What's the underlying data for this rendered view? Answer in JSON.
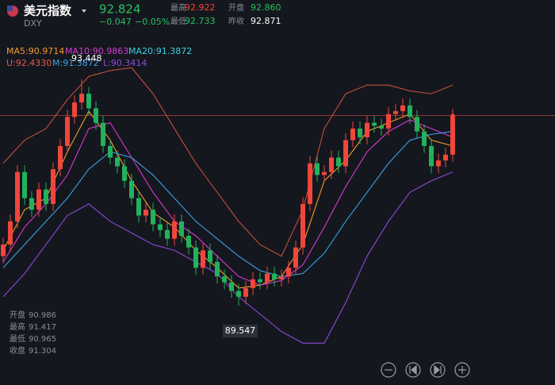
{
  "header": {
    "title": "美元指数",
    "code": "DXY",
    "price": 92.824,
    "change": "−0.047",
    "change_pct": "−0.05%",
    "stats": [
      {
        "label": "最高",
        "value": "92.922"
      },
      {
        "label": "开盘",
        "value": "92.860"
      },
      {
        "label": "最低",
        "value": "92.733"
      },
      {
        "label": "昨收",
        "value": "92.871"
      }
    ]
  },
  "chart_data": {
    "type": "candlestick",
    "up_color": "#f0463c",
    "down_color": "#22b25c",
    "open": [
      90.4,
      90.6,
      91.0,
      91.85,
      91.4,
      91.2,
      91.55,
      91.3,
      91.9,
      92.3,
      92.8,
      93.05,
      93.2,
      92.95,
      92.7,
      92.3,
      92.1,
      91.95,
      91.7,
      91.4,
      91.1,
      91.2,
      90.95,
      90.85,
      90.7,
      91.0,
      90.75,
      90.55,
      90.2,
      90.5,
      90.3,
      90.05,
      89.95,
      89.8,
      89.7,
      89.85,
      90.0,
      89.95,
      90.1,
      90.0,
      90.05,
      90.2,
      90.55,
      91.3,
      92.0,
      91.8,
      91.85,
      92.1,
      91.95,
      92.4,
      92.6,
      92.45,
      92.7,
      92.65,
      92.6,
      92.85,
      92.9,
      93.0,
      92.8,
      92.55,
      92.3,
      91.95,
      92.05,
      92.15
    ],
    "high": [
      90.72,
      91.12,
      91.97,
      91.97,
      91.52,
      91.67,
      91.67,
      92.02,
      92.42,
      92.92,
      93.17,
      93.448,
      93.32,
      93.07,
      92.82,
      92.42,
      92.22,
      92.07,
      91.82,
      91.52,
      91.32,
      91.32,
      91.07,
      90.97,
      91.12,
      91.12,
      90.87,
      90.67,
      90.62,
      90.62,
      90.42,
      90.17,
      90.07,
      89.92,
      89.97,
      90.12,
      90.12,
      90.22,
      90.22,
      90.17,
      90.32,
      90.67,
      91.42,
      92.12,
      92.12,
      91.97,
      92.22,
      92.22,
      92.52,
      92.72,
      92.72,
      92.82,
      92.82,
      92.77,
      92.97,
      93.02,
      93.12,
      93.12,
      92.92,
      92.67,
      92.42,
      92.17,
      92.27,
      92.94
    ],
    "low": [
      90.28,
      90.48,
      90.88,
      91.28,
      91.08,
      91.08,
      91.18,
      91.18,
      91.78,
      92.18,
      92.68,
      92.93,
      92.83,
      92.58,
      92.18,
      91.98,
      91.83,
      91.58,
      91.28,
      90.98,
      90.98,
      90.83,
      90.73,
      90.58,
      90.58,
      90.63,
      90.43,
      90.08,
      90.08,
      90.18,
      89.93,
      89.83,
      89.68,
      89.547,
      89.58,
      89.73,
      89.83,
      89.83,
      89.88,
      89.88,
      89.93,
      90.08,
      90.43,
      91.18,
      91.68,
      91.68,
      91.73,
      91.83,
      91.83,
      92.28,
      92.33,
      92.33,
      92.53,
      92.48,
      92.48,
      92.73,
      92.78,
      92.68,
      92.43,
      92.18,
      91.83,
      91.83,
      91.93,
      92.03
    ],
    "close": [
      90.6,
      91.0,
      91.85,
      91.4,
      91.2,
      91.55,
      91.3,
      91.9,
      92.3,
      92.8,
      93.05,
      93.2,
      92.95,
      92.7,
      92.3,
      92.1,
      91.95,
      91.7,
      91.4,
      91.1,
      91.2,
      90.95,
      90.85,
      90.7,
      91.0,
      90.75,
      90.55,
      90.2,
      90.5,
      90.3,
      90.05,
      89.95,
      89.8,
      89.7,
      89.85,
      90.0,
      89.95,
      90.1,
      90.0,
      90.05,
      90.2,
      90.55,
      91.3,
      92.0,
      91.8,
      91.85,
      92.1,
      91.95,
      92.4,
      92.6,
      92.45,
      92.7,
      92.65,
      92.6,
      92.85,
      92.9,
      93.0,
      92.8,
      92.55,
      92.3,
      91.95,
      92.05,
      92.15,
      92.82
    ],
    "lines": {
      "x": [
        0,
        3,
        6,
        9,
        12,
        15,
        18,
        21,
        24,
        27,
        30,
        33,
        36,
        39,
        42,
        45,
        48,
        51,
        54,
        57,
        60,
        63
      ],
      "series": [
        {
          "name": "MA5:90.9714",
          "color": "#f39c2c",
          "values": [
            90.5,
            91.2,
            91.4,
            92.2,
            92.9,
            92.4,
            91.7,
            91.15,
            90.9,
            90.5,
            90.2,
            89.85,
            89.9,
            90.05,
            90.6,
            91.7,
            92.05,
            92.55,
            92.7,
            92.85,
            92.4,
            92.3
          ]
        },
        {
          "name": "MA10:90.9863",
          "color": "#d63ad6",
          "values": [
            90.3,
            90.9,
            91.3,
            91.8,
            92.6,
            92.7,
            92.1,
            91.5,
            91.0,
            90.75,
            90.4,
            90.05,
            89.9,
            89.98,
            90.25,
            90.9,
            91.6,
            92.2,
            92.55,
            92.75,
            92.6,
            92.45
          ]
        },
        {
          "name": "MA20:91.3872",
          "color": "#3aa0e8",
          "values": [
            90.2,
            90.6,
            91.0,
            91.4,
            91.9,
            92.2,
            92.1,
            91.8,
            91.4,
            91.0,
            90.7,
            90.4,
            90.15,
            90.05,
            90.1,
            90.45,
            91.0,
            91.5,
            92.0,
            92.4,
            92.5,
            92.55
          ]
        },
        {
          "name": "U:92.4330",
          "color": "#c0503a",
          "values": [
            92.0,
            92.4,
            92.6,
            93.1,
            93.5,
            93.6,
            93.65,
            93.2,
            92.6,
            92.0,
            91.5,
            91.0,
            90.6,
            90.4,
            91.2,
            92.6,
            93.2,
            93.35,
            93.35,
            93.25,
            93.2,
            93.35
          ]
        },
        {
          "name": "L:90.3414",
          "color": "#8a4ad8",
          "values": [
            89.7,
            90.1,
            90.6,
            91.1,
            91.3,
            91.0,
            90.8,
            90.6,
            90.5,
            90.3,
            90.1,
            89.7,
            89.4,
            89.1,
            88.9,
            88.9,
            89.6,
            90.4,
            91.0,
            91.5,
            91.7,
            91.85
          ]
        }
      ],
      "mid_band_name": "M:91.3872"
    }
  },
  "info": [
    {
      "label": "开盘",
      "value": "90.986"
    },
    {
      "label": "最高",
      "value": "91.417"
    },
    {
      "label": "最低",
      "value": "90.965"
    },
    {
      "label": "收盘",
      "value": "91.304"
    }
  ]
}
